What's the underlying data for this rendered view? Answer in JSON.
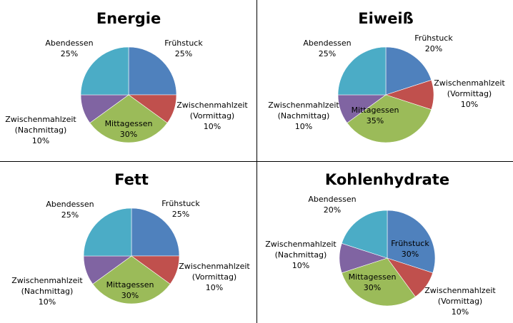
{
  "colors": {
    "fruehstueck": "#4F81BD",
    "zwischen_vormittag": "#C0504D",
    "mittagessen": "#9BBB59",
    "zwischen_nachmittag": "#8064A2",
    "abendessen": "#4BACC6"
  },
  "chart_data": [
    {
      "type": "pie",
      "title": "Energie",
      "categories": [
        "Frühstuck",
        "Zwischenmahlzeit (Vormittag)",
        "Mittagessen",
        "Zwischenmahlzeit (Nachmittag)",
        "Abendessen"
      ],
      "values": [
        25,
        10,
        30,
        10,
        25
      ],
      "labels": [
        [
          "Frühstuck",
          "25%"
        ],
        [
          "Zwischenmahlzeit",
          "(Vormittag)",
          "10%"
        ],
        [
          "Mittagessen",
          "30%"
        ],
        [
          "Zwischenmahlzeit",
          "(Nachmittag)",
          "10%"
        ],
        [
          "Abendessen",
          "25%"
        ]
      ]
    },
    {
      "type": "pie",
      "title": "Eiweiß",
      "categories": [
        "Frühstuck",
        "Zwischenmahlzeit (Vormittag)",
        "Mittagessen",
        "Zwischenmahlzeit (Nachmittag)",
        "Abendessen"
      ],
      "values": [
        20,
        10,
        35,
        10,
        25
      ],
      "labels": [
        [
          "Frühstuck",
          "20%"
        ],
        [
          "Zwischenmahlzeit",
          "(Vormittag)",
          "10%"
        ],
        [
          "Mittagessen",
          "35%"
        ],
        [
          "Zwischenmahlzeit",
          "(Nachmittag)",
          "10%"
        ],
        [
          "Abendessen",
          "25%"
        ]
      ]
    },
    {
      "type": "pie",
      "title": "Fett",
      "categories": [
        "Frühstuck",
        "Zwischenmahlzeit (Vormittag)",
        "Mittagessen",
        "Zwischenmahlzeit (Nachmittag)",
        "Abendessen"
      ],
      "values": [
        25,
        10,
        30,
        10,
        25
      ],
      "labels": [
        [
          "Frühstuck",
          "25%"
        ],
        [
          "Zwischenmahlzeit",
          "(Vormittag)",
          "10%"
        ],
        [
          "Mittagessen",
          "30%"
        ],
        [
          "Zwischenmahlzeit",
          "(Nachmittag)",
          "10%"
        ],
        [
          "Abendessen",
          "25%"
        ]
      ]
    },
    {
      "type": "pie",
      "title": "Kohlenhydrate",
      "categories": [
        "Frühstuck",
        "Zwischenmahlzeit (Vormittag)",
        "Mittagessen",
        "Zwischenmahlzeit (Nachmittag)",
        "Abendessen"
      ],
      "values": [
        30,
        10,
        30,
        10,
        20
      ],
      "labels": [
        [
          "Frühstuck",
          "30%"
        ],
        [
          "Zwischenmahlzeit",
          "(Vormittag)",
          "10%"
        ],
        [
          "Mittagessen",
          "30%"
        ],
        [
          "Zwischenmahlzeit",
          "(Nachmittag)",
          "10%"
        ],
        [
          "Abendessen",
          "20%"
        ]
      ]
    }
  ]
}
